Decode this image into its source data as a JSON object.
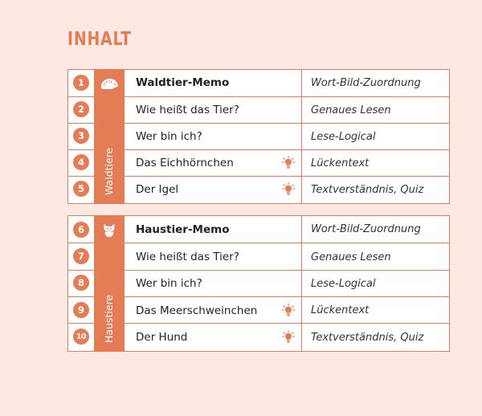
{
  "title": "INHALT",
  "colors": {
    "accent": "#e47c55",
    "background": "#fde9e1"
  },
  "sections": [
    {
      "label": "Waldtiere",
      "icon": "hedgehog-icon",
      "items": [
        {
          "number": "1",
          "title": "Waldtier-Memo",
          "type": "Wort-Bild-Zuordnung",
          "bold": true,
          "bulb": false
        },
        {
          "number": "2",
          "title": "Wie heißt das Tier?",
          "type": "Genaues Lesen",
          "bold": false,
          "bulb": false
        },
        {
          "number": "3",
          "title": "Wer bin ich?",
          "type": "Lese-Logical",
          "bold": false,
          "bulb": false
        },
        {
          "number": "4",
          "title": "Das Eichhörnchen",
          "type": "Lückentext",
          "bold": false,
          "bulb": true
        },
        {
          "number": "5",
          "title": "Der Igel",
          "type": "Textverständnis, Quiz",
          "bold": false,
          "bulb": true
        }
      ]
    },
    {
      "label": "Haustiere",
      "icon": "cat-icon",
      "items": [
        {
          "number": "6",
          "title": "Haustier-Memo",
          "type": "Wort-Bild-Zuordnung",
          "bold": true,
          "bulb": false
        },
        {
          "number": "7",
          "title": "Wie heißt das Tier?",
          "type": "Genaues Lesen",
          "bold": false,
          "bulb": false
        },
        {
          "number": "8",
          "title": "Wer bin ich?",
          "type": "Lese-Logical",
          "bold": false,
          "bulb": false
        },
        {
          "number": "9",
          "title": "Das Meerschweinchen",
          "type": "Lückentext",
          "bold": false,
          "bulb": true
        },
        {
          "number": "10",
          "title": "Der Hund",
          "type": "Textverständnis, Quiz",
          "bold": false,
          "bulb": true
        }
      ]
    }
  ]
}
